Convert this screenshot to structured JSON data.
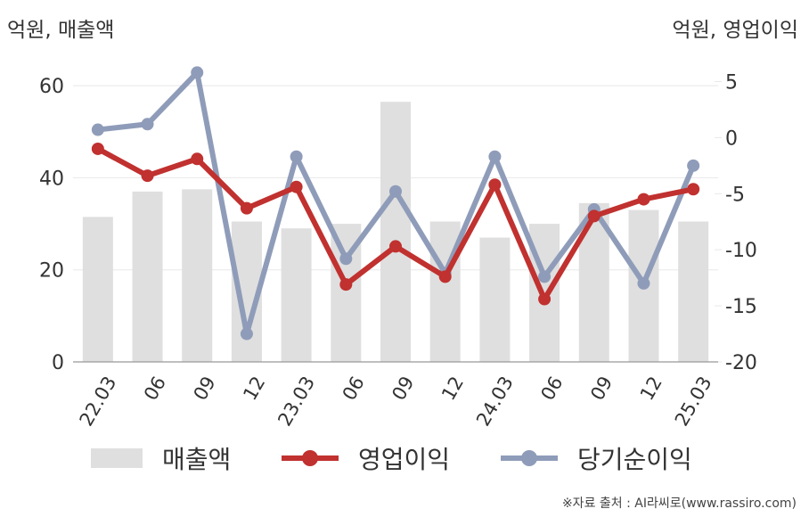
{
  "header": {
    "left_unit": "억원, 매출액",
    "right_unit": "억원, 영업이익"
  },
  "legend": {
    "revenue": "매출액",
    "operating_profit": "영업이익",
    "net_income": "당기순이익"
  },
  "source": "※자료 출처 : AI라씨로(www.rassiro.com)",
  "colors": {
    "revenue": "#dfdfdf",
    "operating_profit": "#c0312f",
    "net_income": "#8f9cb9",
    "grid": "#e8e8e8",
    "axis": "#999999"
  },
  "chart_data": {
    "type": "bar",
    "categories": [
      "22.03",
      "06",
      "09",
      "12",
      "23.03",
      "06",
      "09",
      "12",
      "24.03",
      "06",
      "09",
      "12",
      "25.03"
    ],
    "left_axis": {
      "ticks": [
        0,
        20,
        40,
        60
      ],
      "ylim": [
        0,
        67
      ]
    },
    "right_axis": {
      "ticks": [
        -20,
        -15,
        -10,
        -5,
        0,
        5
      ],
      "ylim": [
        -20,
        7.5
      ]
    },
    "series": [
      {
        "name": "매출액",
        "kind": "bar",
        "axis": "left",
        "values": [
          31.5,
          37,
          37.5,
          30.5,
          29,
          30,
          56.5,
          30.5,
          27,
          30,
          34.5,
          33,
          30.5
        ]
      },
      {
        "name": "영업이익",
        "kind": "line",
        "axis": "right",
        "values": [
          -1,
          -3.4,
          -1.9,
          -6.3,
          -4.4,
          -13.1,
          -9.7,
          -12.4,
          -4.2,
          -14.4,
          -7,
          -5.5,
          -4.6
        ]
      },
      {
        "name": "당기순이익",
        "kind": "line",
        "axis": "right",
        "values": [
          0.7,
          1.2,
          5.8,
          -17.5,
          -1.7,
          -10.8,
          -4.8,
          -12.1,
          -1.7,
          -12.4,
          -6.4,
          -13,
          -2.5
        ]
      }
    ],
    "legend_position": "bottom",
    "grid": true
  }
}
